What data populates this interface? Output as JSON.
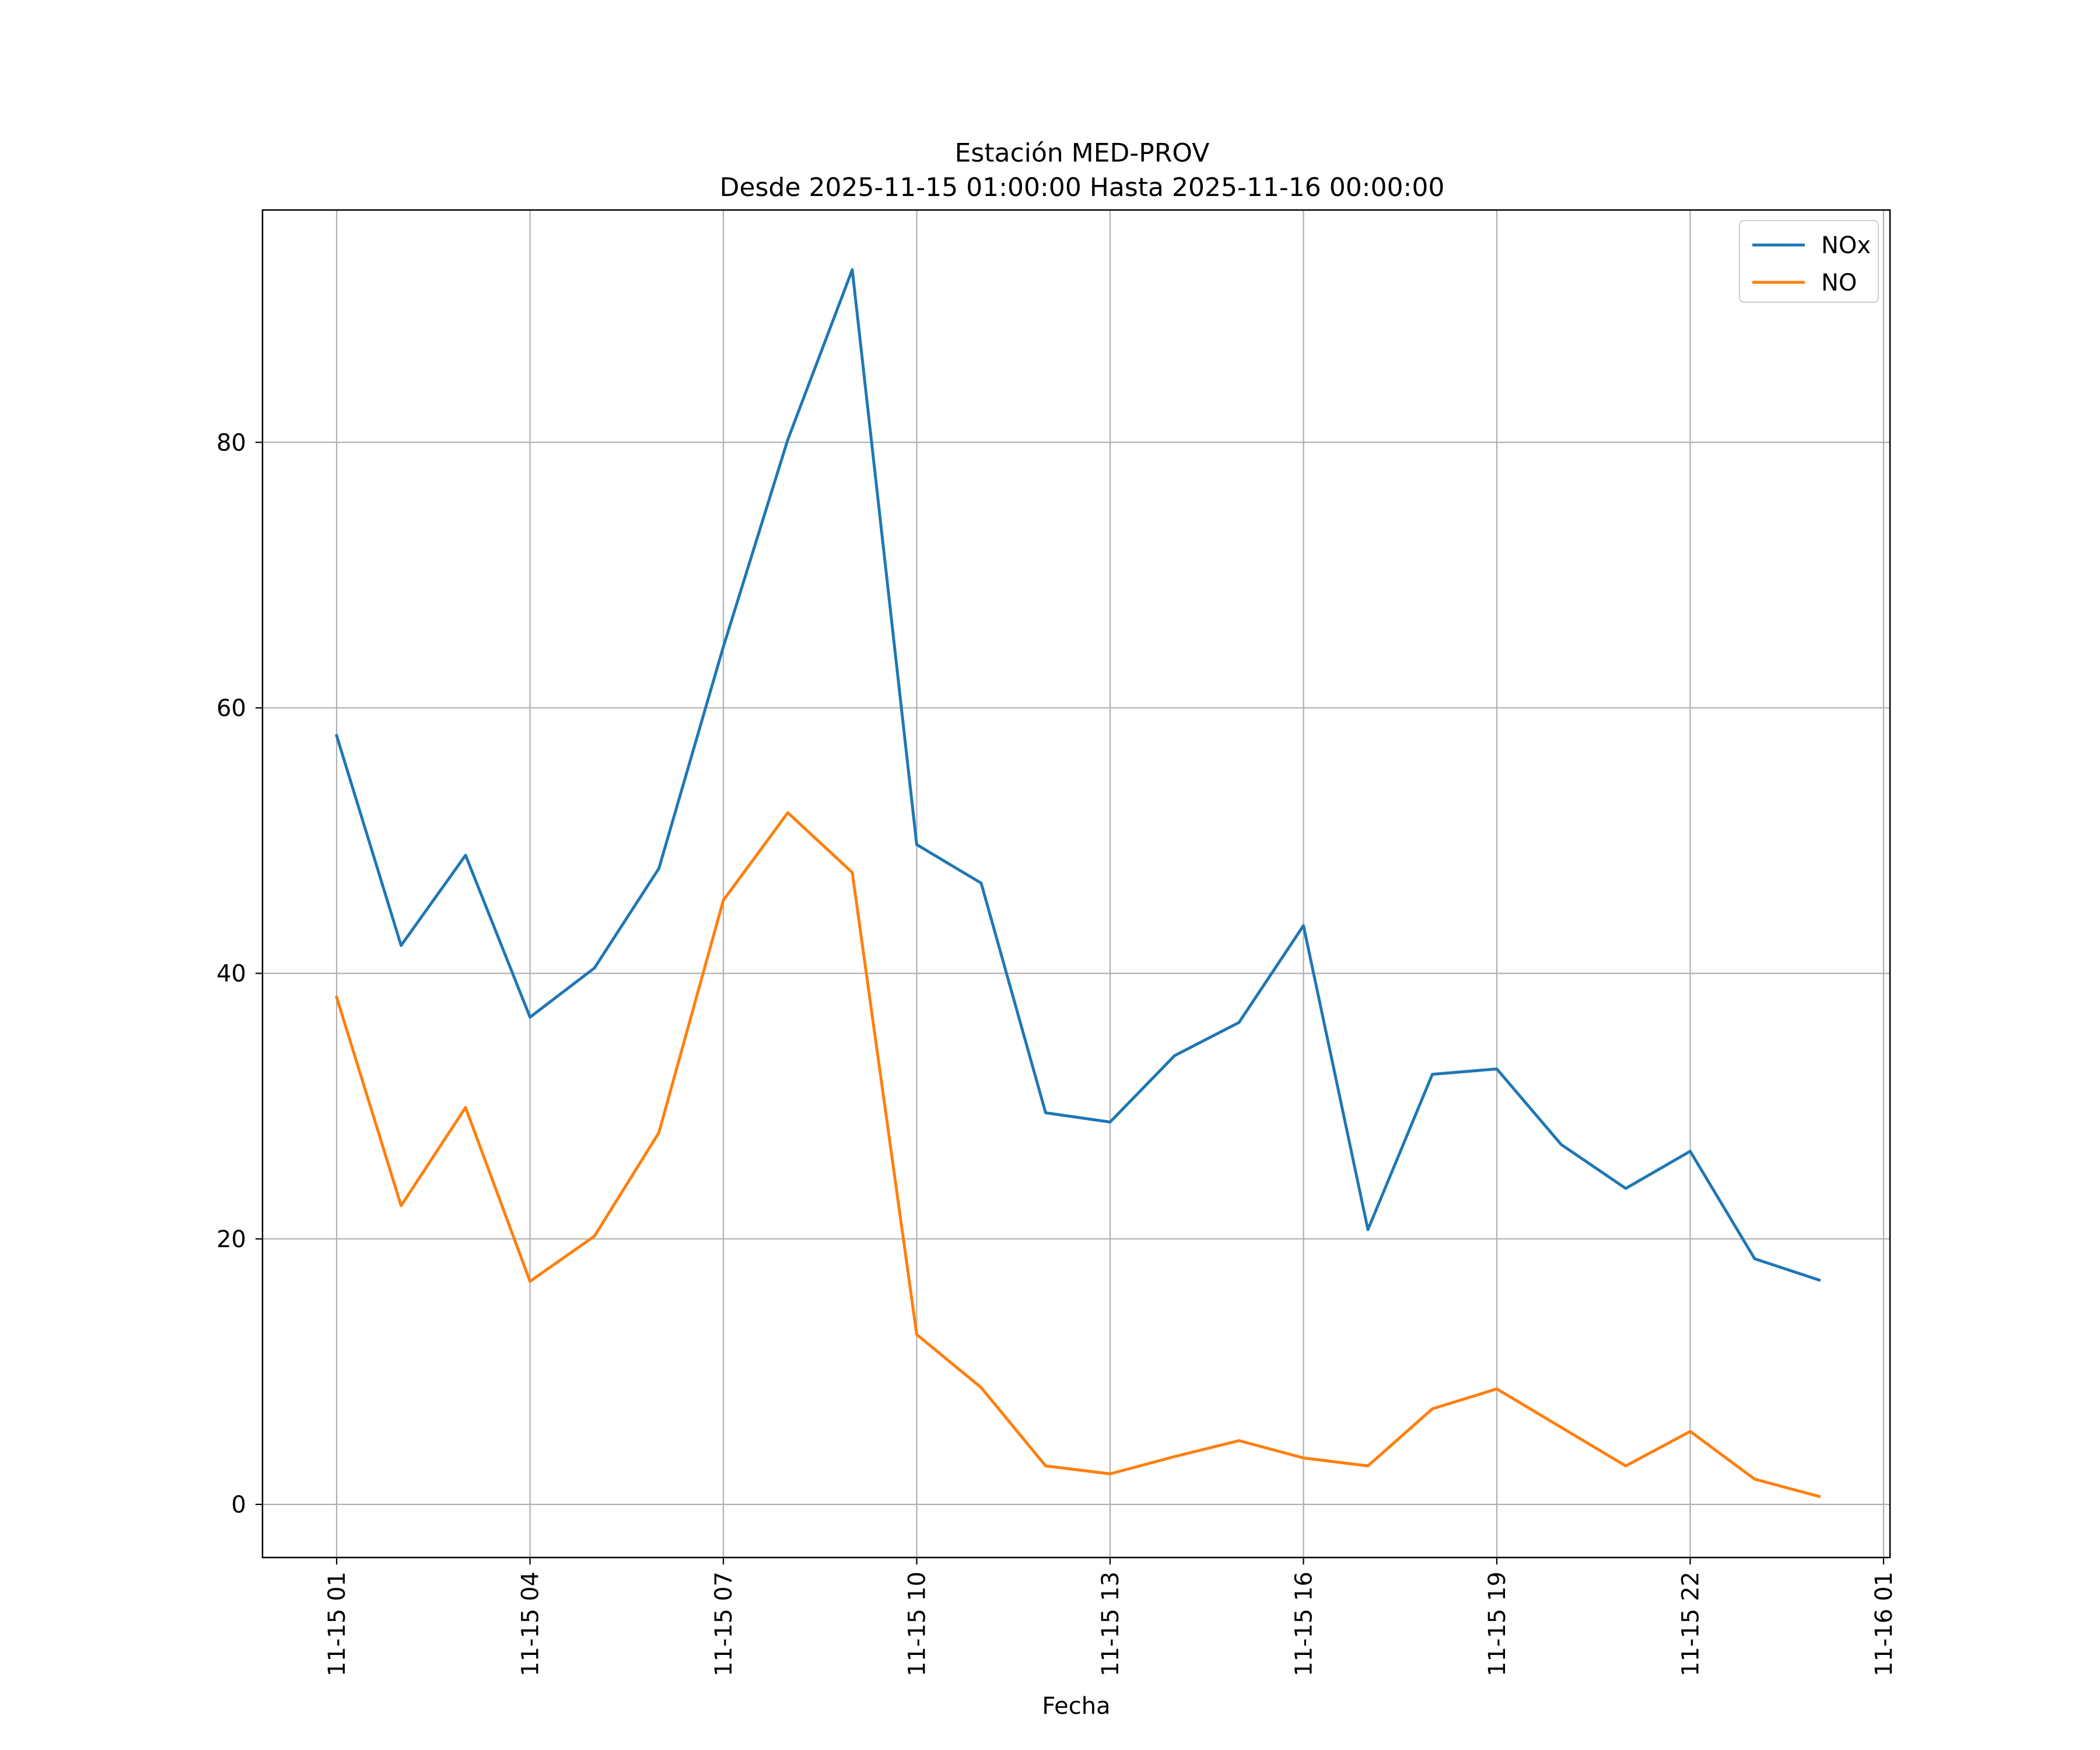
{
  "chart_data": {
    "type": "line",
    "title": "Estación MED-PROV",
    "subtitle": "Desde 2025-11-15 01:00:00 Hasta 2025-11-16 00:00:00",
    "xlabel": "Fecha",
    "ylabel": "",
    "x": [
      "2025-11-15 01:00",
      "2025-11-15 02:00",
      "2025-11-15 03:00",
      "2025-11-15 04:00",
      "2025-11-15 05:00",
      "2025-11-15 06:00",
      "2025-11-15 07:00",
      "2025-11-15 08:00",
      "2025-11-15 09:00",
      "2025-11-15 10:00",
      "2025-11-15 11:00",
      "2025-11-15 12:00",
      "2025-11-15 13:00",
      "2025-11-15 14:00",
      "2025-11-15 15:00",
      "2025-11-15 16:00",
      "2025-11-15 17:00",
      "2025-11-15 18:00",
      "2025-11-15 19:00",
      "2025-11-15 20:00",
      "2025-11-15 21:00",
      "2025-11-15 22:00",
      "2025-11-15 23:00",
      "2025-11-16 00:00"
    ],
    "xticks": [
      {
        "hour": 0,
        "label": "11-15 01"
      },
      {
        "hour": 3,
        "label": "11-15 04"
      },
      {
        "hour": 6,
        "label": "11-15 07"
      },
      {
        "hour": 9,
        "label": "11-15 10"
      },
      {
        "hour": 12,
        "label": "11-15 13"
      },
      {
        "hour": 15,
        "label": "11-15 16"
      },
      {
        "hour": 18,
        "label": "11-15 19"
      },
      {
        "hour": 21,
        "label": "11-15 22"
      },
      {
        "hour": 24,
        "label": "11-16 01"
      }
    ],
    "xlim": [
      -1.15,
      24.1
    ],
    "yticks": [
      0,
      20,
      40,
      60,
      80
    ],
    "ylim": [
      -4,
      97.5
    ],
    "grid": true,
    "legend_position": "top-right",
    "series": [
      {
        "name": "NOx",
        "color": "#1f77b4",
        "values": [
          57.9,
          42.1,
          48.9,
          36.7,
          40.4,
          47.9,
          64.6,
          80.2,
          93.0,
          49.7,
          46.8,
          29.5,
          28.8,
          33.8,
          36.3,
          43.6,
          20.7,
          32.4,
          32.8,
          27.1,
          23.8,
          26.6,
          18.5,
          16.9
        ]
      },
      {
        "name": "NO",
        "color": "#ff7f0e",
        "values": [
          38.2,
          22.5,
          29.9,
          16.8,
          20.2,
          28.0,
          45.5,
          52.1,
          47.6,
          12.8,
          8.8,
          2.9,
          2.3,
          3.6,
          4.8,
          3.5,
          2.9,
          7.2,
          8.7,
          5.8,
          2.9,
          5.5,
          1.9,
          0.6
        ]
      }
    ]
  }
}
